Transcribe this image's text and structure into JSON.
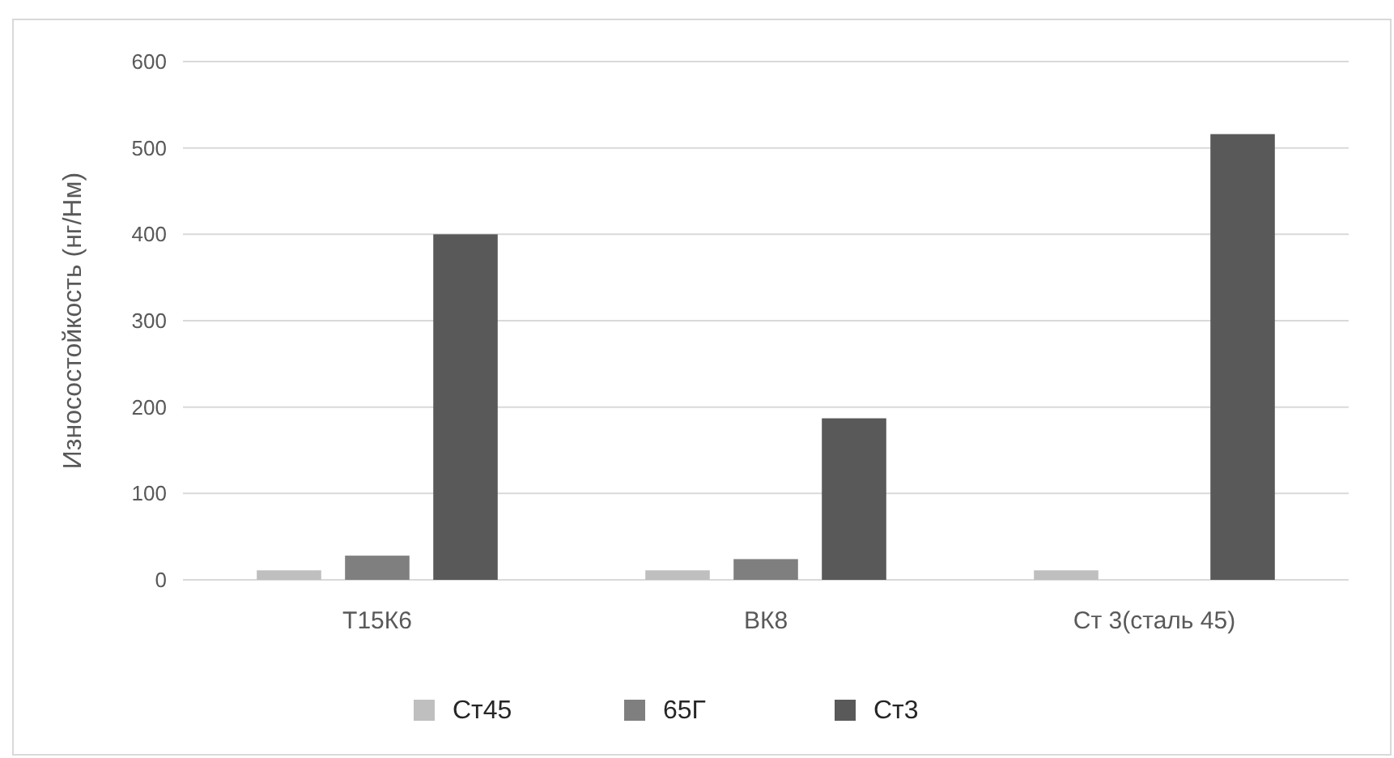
{
  "chart_data": {
    "type": "bar",
    "ylabel": "Износостойкость (нг/Нм)",
    "categories": [
      "Т15К6",
      "ВК8",
      "Ст 3(сталь 45)"
    ],
    "series": [
      {
        "name": "Ст45",
        "color": "#bfbfbf",
        "values": [
          11,
          11,
          11
        ]
      },
      {
        "name": "65Г",
        "color": "#7f7f7f",
        "values": [
          28,
          24,
          null
        ]
      },
      {
        "name": "Ст3",
        "color": "#595959",
        "values": [
          400,
          187,
          516
        ]
      }
    ],
    "ylim": [
      0,
      600
    ],
    "yticks": [
      0,
      100,
      200,
      300,
      400,
      500,
      600
    ],
    "grid": "y",
    "legend": "bottom"
  }
}
